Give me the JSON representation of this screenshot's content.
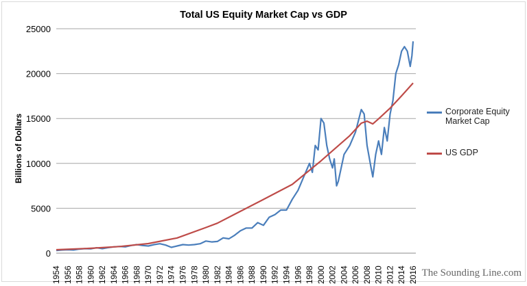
{
  "chart_data": {
    "type": "line",
    "title": "Total US Equity Market Cap vs GDP",
    "xlabel": "",
    "ylabel": "Billions of Dollars",
    "xlim": [
      1954,
      2016
    ],
    "ylim": [
      0,
      25000
    ],
    "yticks": [
      0,
      5000,
      10000,
      15000,
      20000,
      25000
    ],
    "xticks": [
      1954,
      1956,
      1958,
      1960,
      1962,
      1964,
      1966,
      1968,
      1970,
      1972,
      1974,
      1976,
      1978,
      1980,
      1982,
      1984,
      1986,
      1988,
      1990,
      1992,
      1994,
      1996,
      1998,
      2000,
      2002,
      2004,
      2006,
      2008,
      2010,
      2012,
      2014,
      2016
    ],
    "grid": "horizontal",
    "legend": "right",
    "series": [
      {
        "name": "Corporate Equity Market Cap",
        "color": "#4a7ebb",
        "x": [
          1954,
          1955,
          1956,
          1957,
          1958,
          1959,
          1960,
          1961,
          1962,
          1963,
          1964,
          1965,
          1966,
          1967,
          1968,
          1969,
          1970,
          1971,
          1972,
          1973,
          1974,
          1975,
          1976,
          1977,
          1978,
          1979,
          1980,
          1981,
          1982,
          1983,
          1984,
          1985,
          1986,
          1987,
          1988,
          1989,
          1990,
          1991,
          1992,
          1993,
          1994,
          1995,
          1996,
          1997,
          1998,
          1998.5,
          1999,
          1999.5,
          2000,
          2000.5,
          2001,
          2001.5,
          2002,
          2002.3,
          2002.7,
          2003,
          2004,
          2005,
          2006,
          2007,
          2007.5,
          2008,
          2008.7,
          2009,
          2009.5,
          2010,
          2010.5,
          2011,
          2011.5,
          2012,
          2012.5,
          2013,
          2013.5,
          2014,
          2014.5,
          2015,
          2015.5,
          2015.8,
          2016
        ],
        "y": [
          300,
          350,
          380,
          350,
          450,
          500,
          480,
          600,
          500,
          620,
          700,
          750,
          700,
          850,
          950,
          850,
          800,
          950,
          1050,
          900,
          650,
          800,
          950,
          900,
          950,
          1050,
          1350,
          1250,
          1300,
          1700,
          1600,
          2000,
          2500,
          2800,
          2800,
          3400,
          3100,
          4000,
          4300,
          4800,
          4800,
          6000,
          7000,
          8500,
          10000,
          9000,
          12000,
          11500,
          15000,
          14500,
          12000,
          10500,
          9500,
          10500,
          7500,
          8000,
          11000,
          12000,
          13500,
          16000,
          15500,
          12000,
          9500,
          8500,
          11000,
          12500,
          11000,
          14000,
          12500,
          15500,
          17000,
          20000,
          21000,
          22500,
          23000,
          22500,
          20800,
          22000,
          23600
        ]
      },
      {
        "name": "US GDP",
        "color": "#be4b48",
        "x": [
          1954,
          1960,
          1965,
          1970,
          1975,
          1980,
          1982,
          1985,
          1990,
          1995,
          2000,
          2005,
          2007,
          2008,
          2009,
          2010,
          2012,
          2014,
          2016
        ],
        "y": [
          380,
          540,
          740,
          1070,
          1690,
          2860,
          3340,
          4340,
          5980,
          7660,
          10280,
          13090,
          14480,
          14700,
          14400,
          14960,
          16150,
          17520,
          18950
        ]
      }
    ]
  },
  "watermark": "The Sounding Line.com"
}
